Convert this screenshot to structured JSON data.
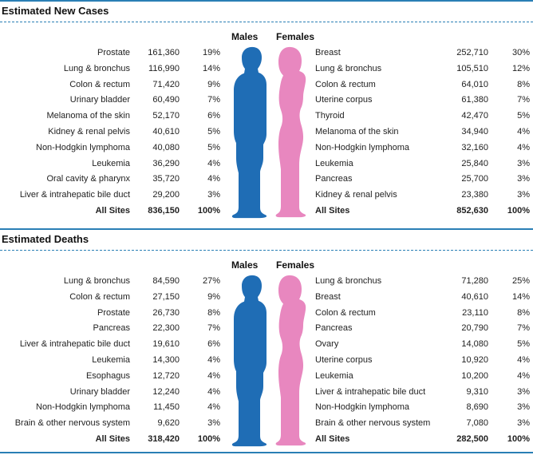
{
  "sections": [
    {
      "title": "Estimated New Cases",
      "males_label": "Males",
      "females_label": "Females",
      "males": [
        {
          "site": "Prostate",
          "count": "161,360",
          "pct": "19%"
        },
        {
          "site": "Lung & bronchus",
          "count": "116,990",
          "pct": "14%"
        },
        {
          "site": "Colon & rectum",
          "count": "71,420",
          "pct": "9%"
        },
        {
          "site": "Urinary bladder",
          "count": "60,490",
          "pct": "7%"
        },
        {
          "site": "Melanoma of the skin",
          "count": "52,170",
          "pct": "6%"
        },
        {
          "site": "Kidney & renal pelvis",
          "count": "40,610",
          "pct": "5%"
        },
        {
          "site": "Non-Hodgkin lymphoma",
          "count": "40,080",
          "pct": "5%"
        },
        {
          "site": "Leukemia",
          "count": "36,290",
          "pct": "4%"
        },
        {
          "site": "Oral cavity & pharynx",
          "count": "35,720",
          "pct": "4%"
        },
        {
          "site": "Liver & intrahepatic bile duct",
          "count": "29,200",
          "pct": "3%"
        }
      ],
      "males_total": {
        "site": "All Sites",
        "count": "836,150",
        "pct": "100%"
      },
      "females": [
        {
          "site": "Breast",
          "count": "252,710",
          "pct": "30%"
        },
        {
          "site": "Lung & bronchus",
          "count": "105,510",
          "pct": "12%"
        },
        {
          "site": "Colon & rectum",
          "count": "64,010",
          "pct": "8%"
        },
        {
          "site": "Uterine corpus",
          "count": "61,380",
          "pct": "7%"
        },
        {
          "site": "Thyroid",
          "count": "42,470",
          "pct": "5%"
        },
        {
          "site": "Melanoma of the skin",
          "count": "34,940",
          "pct": "4%"
        },
        {
          "site": "Non-Hodgkin lymphoma",
          "count": "32,160",
          "pct": "4%"
        },
        {
          "site": "Leukemia",
          "count": "25,840",
          "pct": "3%"
        },
        {
          "site": "Pancreas",
          "count": "25,700",
          "pct": "3%"
        },
        {
          "site": "Kidney & renal pelvis",
          "count": "23,380",
          "pct": "3%"
        }
      ],
      "females_total": {
        "site": "All Sites",
        "count": "852,630",
        "pct": "100%"
      }
    },
    {
      "title": "Estimated Deaths",
      "males_label": "Males",
      "females_label": "Females",
      "males": [
        {
          "site": "Lung & bronchus",
          "count": "84,590",
          "pct": "27%"
        },
        {
          "site": "Colon & rectum",
          "count": "27,150",
          "pct": "9%"
        },
        {
          "site": "Prostate",
          "count": "26,730",
          "pct": "8%"
        },
        {
          "site": "Pancreas",
          "count": "22,300",
          "pct": "7%"
        },
        {
          "site": "Liver & intrahepatic bile duct",
          "count": "19,610",
          "pct": "6%"
        },
        {
          "site": "Leukemia",
          "count": "14,300",
          "pct": "4%"
        },
        {
          "site": "Esophagus",
          "count": "12,720",
          "pct": "4%"
        },
        {
          "site": "Urinary bladder",
          "count": "12,240",
          "pct": "4%"
        },
        {
          "site": "Non-Hodgkin lymphoma",
          "count": "11,450",
          "pct": "4%"
        },
        {
          "site": "Brain & other nervous system",
          "count": "9,620",
          "pct": "3%"
        }
      ],
      "males_total": {
        "site": "All Sites",
        "count": "318,420",
        "pct": "100%"
      },
      "females": [
        {
          "site": "Lung & bronchus",
          "count": "71,280",
          "pct": "25%"
        },
        {
          "site": "Breast",
          "count": "40,610",
          "pct": "14%"
        },
        {
          "site": "Colon & rectum",
          "count": "23,110",
          "pct": "8%"
        },
        {
          "site": "Pancreas",
          "count": "20,790",
          "pct": "7%"
        },
        {
          "site": "Ovary",
          "count": "14,080",
          "pct": "5%"
        },
        {
          "site": "Uterine corpus",
          "count": "10,920",
          "pct": "4%"
        },
        {
          "site": "Leukemia",
          "count": "10,200",
          "pct": "4%"
        },
        {
          "site": "Liver & intrahepatic bile duct",
          "count": "9,310",
          "pct": "3%"
        },
        {
          "site": "Non-Hodgkin lymphoma",
          "count": "8,690",
          "pct": "3%"
        },
        {
          "site": "Brain & other nervous system",
          "count": "7,080",
          "pct": "3%"
        }
      ],
      "females_total": {
        "site": "All Sites",
        "count": "282,500",
        "pct": "100%"
      }
    }
  ],
  "colors": {
    "accent": "#2a7fb5",
    "male": "#1f6db5",
    "female": "#e887bf"
  },
  "icons": {
    "male": "male-silhouette-icon",
    "female": "female-silhouette-icon"
  }
}
